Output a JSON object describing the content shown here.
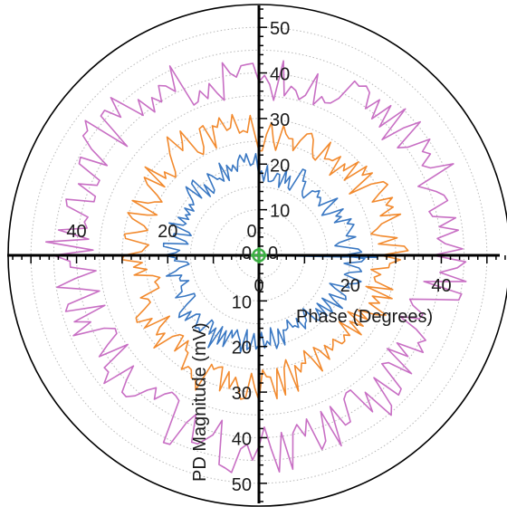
{
  "chart_data": {
    "type": "polar-line",
    "r_max": 55,
    "r_unit_labels": [
      "0",
      "10",
      "20",
      "30",
      "40",
      "50"
    ],
    "radial_axis_ticks": [
      10,
      20,
      30,
      40,
      50
    ],
    "ring_values": [
      5,
      10,
      15,
      20,
      25,
      30,
      35,
      40,
      45,
      50,
      55
    ],
    "xlabel": "Phase (Degrees)",
    "ylabel": "PD Magnitude (mV)",
    "colors": {
      "inner": "#3a78c3",
      "middle": "#f28a2e",
      "outer": "#c86fc4",
      "center_marker": "#3cb043",
      "axes": "#000000",
      "grid": "#b8b8b8"
    },
    "series": [
      {
        "color_key": "outer",
        "base_radius": 41,
        "amplitude": 5.5,
        "seed": 17,
        "points": 200
      },
      {
        "color_key": "middle",
        "base_radius": 27.5,
        "amplitude": 4,
        "seed": 41,
        "points": 200
      },
      {
        "color_key": "inner",
        "base_radius": 19,
        "amplitude": 3.2,
        "seed": 73,
        "points": 200
      }
    ],
    "spike": {
      "angle_deg": 359,
      "radius": 26
    }
  }
}
